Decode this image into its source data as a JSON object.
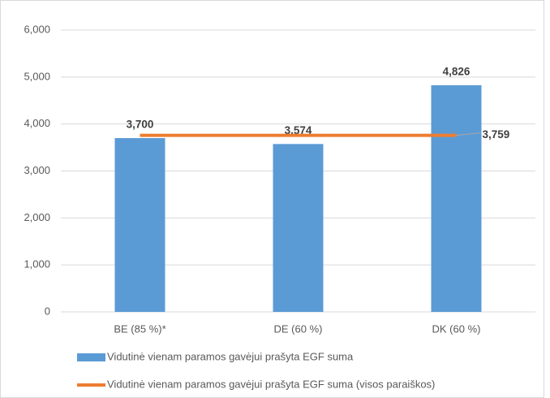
{
  "chart_data": {
    "type": "bar",
    "categories": [
      "BE (85 %)*",
      "DE (60 %)",
      "DK (60 %)"
    ],
    "series": [
      {
        "name": "Vidutinė vienam paramos gavėjui prašyta EGF suma",
        "type": "bar",
        "color": "#5b9bd5",
        "values": [
          3700,
          3574,
          4826
        ],
        "value_labels": [
          "3,700",
          "3,574",
          "4,826"
        ]
      },
      {
        "name": "Vidutinė vienam paramos gavėjui prašyta EGF suma (visos paraiškos)",
        "type": "line",
        "color": "#ed7d31",
        "values": [
          3759,
          3759,
          3759
        ],
        "value_labels": [
          null,
          null,
          "3,759"
        ]
      }
    ],
    "ylim": [
      0,
      6000
    ],
    "yticks": [
      0,
      {
        "value": 1000,
        "label": "1,000"
      },
      {
        "value": 2000,
        "label": "2,000"
      },
      {
        "value": 3000,
        "label": "3,000"
      },
      {
        "value": 4000,
        "label": "4,000"
      },
      {
        "value": 5000,
        "label": "5,000"
      },
      {
        "value": 6000,
        "label": "6,000"
      }
    ],
    "grid": true,
    "legend": "bottom"
  }
}
